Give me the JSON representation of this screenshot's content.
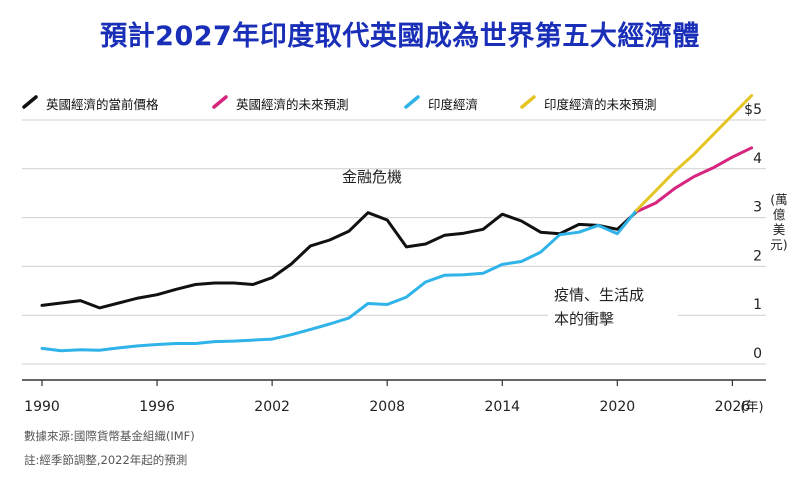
{
  "title": "預計2027年印度取代英國成為世界第五大經濟體",
  "legend": [
    {
      "label": "英國經濟的當前價格",
      "color": "#111111"
    },
    {
      "label": "英國經濟的未來預測",
      "color": "#d6247f"
    },
    {
      "label": "印度經濟",
      "color": "#2fb3e8"
    },
    {
      "label": "印度經濟的未來預測",
      "color": "#e4c524"
    }
  ],
  "colors": {
    "grid": "#cfcfcf",
    "axis": "#333333",
    "title": "#1a2fb8"
  },
  "chart_data": {
    "type": "line",
    "title": "預計2027年印度取代英國成為世界第五大經濟體",
    "xlabel": "(年)",
    "ylabel": "(萬億美元)",
    "xlim": [
      1990,
      2027.7
    ],
    "ylim": [
      0,
      5
    ],
    "x_ticks": [
      1990,
      1996,
      2002,
      2008,
      2014,
      2020,
      2026
    ],
    "y_ticks": [
      {
        "value": 0,
        "label": "0"
      },
      {
        "value": 1,
        "label": "1"
      },
      {
        "value": 2,
        "label": "2"
      },
      {
        "value": 3,
        "label": "3"
      },
      {
        "value": 4,
        "label": "4"
      },
      {
        "value": 5,
        "label": "$5"
      }
    ],
    "series": [
      {
        "name": "英國經濟的當前價格",
        "color": "#111111",
        "x": [
          1990,
          1991,
          1992,
          1993,
          1994,
          1995,
          1996,
          1997,
          1998,
          1999,
          2000,
          2001,
          2002,
          2003,
          2004,
          2005,
          2006,
          2007,
          2008,
          2009,
          2010,
          2011,
          2012,
          2013,
          2014,
          2015,
          2016,
          2017,
          2018,
          2019,
          2020,
          2021
        ],
        "y": [
          1.2,
          1.25,
          1.3,
          1.15,
          1.25,
          1.35,
          1.42,
          1.53,
          1.63,
          1.66,
          1.66,
          1.63,
          1.77,
          2.05,
          2.42,
          2.54,
          2.72,
          3.1,
          2.95,
          2.4,
          2.46,
          2.64,
          2.68,
          2.76,
          3.07,
          2.93,
          2.7,
          2.67,
          2.86,
          2.84,
          2.76,
          3.12
        ]
      },
      {
        "name": "英國經濟的未來預測",
        "color": "#d6247f",
        "x": [
          2021,
          2022,
          2023,
          2024,
          2025,
          2026,
          2027
        ],
        "y": [
          3.12,
          3.3,
          3.6,
          3.84,
          4.02,
          4.24,
          4.43
        ]
      },
      {
        "name": "印度經濟",
        "color": "#2fb3e8",
        "x": [
          1990,
          1991,
          1992,
          1993,
          1994,
          1995,
          1996,
          1997,
          1998,
          1999,
          2000,
          2001,
          2002,
          2003,
          2004,
          2005,
          2006,
          2007,
          2008,
          2009,
          2010,
          2011,
          2012,
          2013,
          2014,
          2015,
          2016,
          2017,
          2018,
          2019,
          2020,
          2021
        ],
        "y": [
          0.32,
          0.27,
          0.29,
          0.28,
          0.33,
          0.37,
          0.4,
          0.42,
          0.42,
          0.46,
          0.47,
          0.49,
          0.51,
          0.6,
          0.71,
          0.82,
          0.94,
          1.24,
          1.22,
          1.37,
          1.68,
          1.82,
          1.83,
          1.86,
          2.04,
          2.1,
          2.29,
          2.65,
          2.7,
          2.84,
          2.67,
          3.15
        ]
      },
      {
        "name": "印度經濟的未來預測",
        "color": "#e4c524",
        "x": [
          2021,
          2022,
          2023,
          2024,
          2025,
          2026,
          2027
        ],
        "y": [
          3.15,
          3.55,
          3.95,
          4.3,
          4.7,
          5.1,
          5.5
        ]
      }
    ],
    "annotations": [
      {
        "text": "金融危機"
      },
      {
        "text": "疫情、生活成本的衝擊"
      }
    ]
  },
  "notes": {
    "source": "數據來源:國際貨幣基金組織(IMF)",
    "adjustment": "註:經季節調整,2022年起的預測"
  }
}
